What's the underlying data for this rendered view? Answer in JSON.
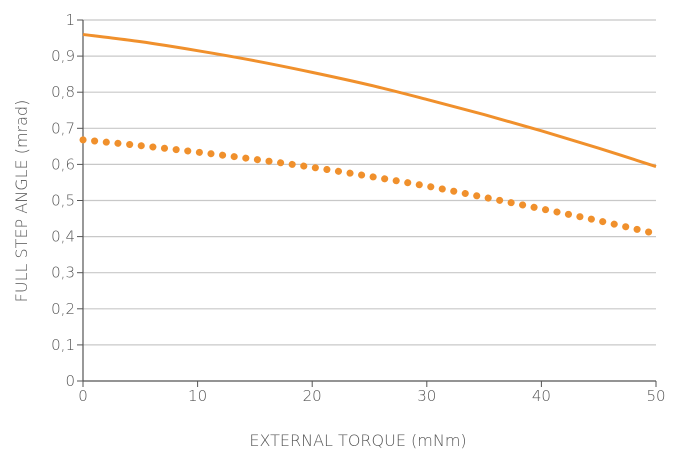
{
  "chart_data": {
    "type": "line",
    "xlabel": "EXTERNAL TORQUE (mNm)",
    "ylabel": "FULL STEP ANGLE (mrad)",
    "xlim": [
      0,
      50
    ],
    "ylim": [
      0,
      1
    ],
    "x_ticks": [
      "0",
      "10",
      "20",
      "30",
      "40",
      "50"
    ],
    "y_ticks": [
      "0",
      "0,1",
      "0,2",
      "0,3",
      "0,4",
      "0,5",
      "0,6",
      "0,7",
      "0,8",
      "0,9",
      "1"
    ],
    "grid": "horizontal",
    "series": [
      {
        "style": "solid",
        "color": "#f0902c",
        "x": [
          0,
          5,
          10,
          15,
          20,
          25,
          30,
          35,
          40,
          45,
          50
        ],
        "y": [
          0.96,
          0.94,
          0.915,
          0.887,
          0.855,
          0.82,
          0.78,
          0.738,
          0.693,
          0.645,
          0.594
        ]
      },
      {
        "style": "dotted",
        "color": "#f0902c",
        "x": [
          0,
          5,
          10,
          15,
          20,
          25,
          30,
          35,
          40,
          45,
          50
        ],
        "y": [
          0.668,
          0.652,
          0.634,
          0.614,
          0.592,
          0.567,
          0.54,
          0.509,
          0.477,
          0.444,
          0.408
        ]
      }
    ]
  }
}
